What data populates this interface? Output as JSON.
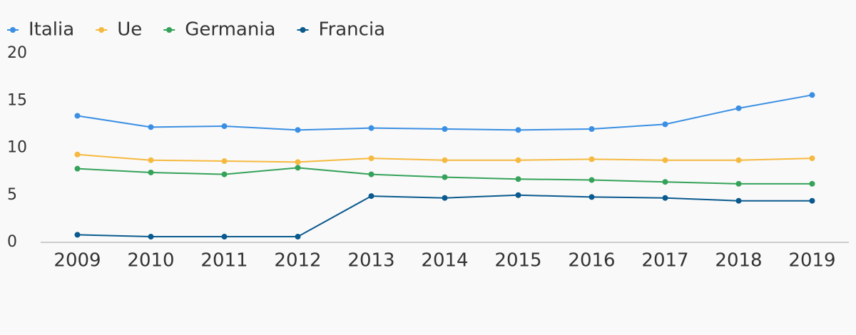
{
  "chart_data": {
    "type": "line",
    "categories": [
      "2009",
      "2010",
      "2011",
      "2012",
      "2013",
      "2014",
      "2015",
      "2016",
      "2017",
      "2018",
      "2019"
    ],
    "series": [
      {
        "name": "Italia",
        "color": "#3b8fe3",
        "values": [
          13.4,
          12.2,
          12.3,
          11.9,
          12.1,
          12.0,
          11.9,
          12.0,
          12.5,
          14.2,
          15.6
        ]
      },
      {
        "name": "Ue",
        "color": "#f6b93f",
        "values": [
          9.3,
          8.7,
          8.6,
          8.5,
          8.9,
          8.7,
          8.7,
          8.8,
          8.7,
          8.7,
          8.9
        ]
      },
      {
        "name": "Germania",
        "color": "#35a259",
        "values": [
          7.8,
          7.4,
          7.2,
          7.9,
          7.2,
          6.9,
          6.7,
          6.6,
          6.4,
          6.2,
          6.2
        ]
      },
      {
        "name": "Francia",
        "color": "#0a5a8e",
        "values": [
          0.8,
          0.6,
          0.6,
          0.6,
          4.9,
          4.7,
          5.0,
          4.8,
          4.7,
          4.4,
          4.4
        ]
      }
    ],
    "ylim": [
      0,
      20
    ],
    "yticks": [
      0,
      5,
      10,
      15,
      20
    ],
    "grid": false,
    "legend": "top-left"
  }
}
